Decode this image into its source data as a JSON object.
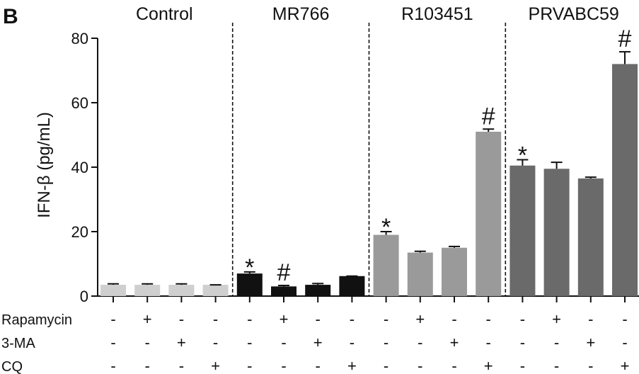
{
  "panel_letter": "B",
  "chart_data": {
    "type": "bar",
    "ylabel": "IFN-β (pg/mL)",
    "xlabel": "",
    "ylim": [
      0,
      80
    ],
    "yticks": [
      0,
      20,
      40,
      60,
      80
    ],
    "grid": false,
    "groups": [
      {
        "name": "Control",
        "color": "#cfcfcf",
        "values": [
          3.5,
          3.5,
          3.5,
          3.5
        ],
        "errors": [
          0.3,
          0.3,
          0.3,
          0
        ],
        "annotations": [
          "",
          "",
          "",
          ""
        ]
      },
      {
        "name": "MR766",
        "color": "#111111",
        "values": [
          7.0,
          3.0,
          3.5,
          6.2
        ],
        "errors": [
          0.5,
          0.3,
          0.4,
          0
        ],
        "annotations": [
          "*",
          "#",
          "",
          ""
        ]
      },
      {
        "name": "R103451",
        "color": "#9a9a9a",
        "values": [
          19.0,
          13.5,
          15.0,
          51.0
        ],
        "errors": [
          1.0,
          0.4,
          0.4,
          0.8
        ],
        "annotations": [
          "*",
          "",
          "",
          "#"
        ]
      },
      {
        "name": "PRVABC59",
        "color": "#6a6a6a",
        "values": [
          40.5,
          39.5,
          36.5,
          72.0
        ],
        "errors": [
          1.8,
          2.0,
          0.4,
          3.8
        ],
        "annotations": [
          "*",
          "",
          "",
          "#"
        ]
      }
    ],
    "treatment_rows": [
      {
        "label": "Rapamycin",
        "pattern": [
          "-",
          "+",
          "-",
          "-"
        ]
      },
      {
        "label": "3-MA",
        "pattern": [
          "-",
          "-",
          "+",
          "-"
        ]
      },
      {
        "label": "CQ",
        "pattern": [
          "-",
          "-",
          "-",
          "+"
        ]
      }
    ]
  }
}
